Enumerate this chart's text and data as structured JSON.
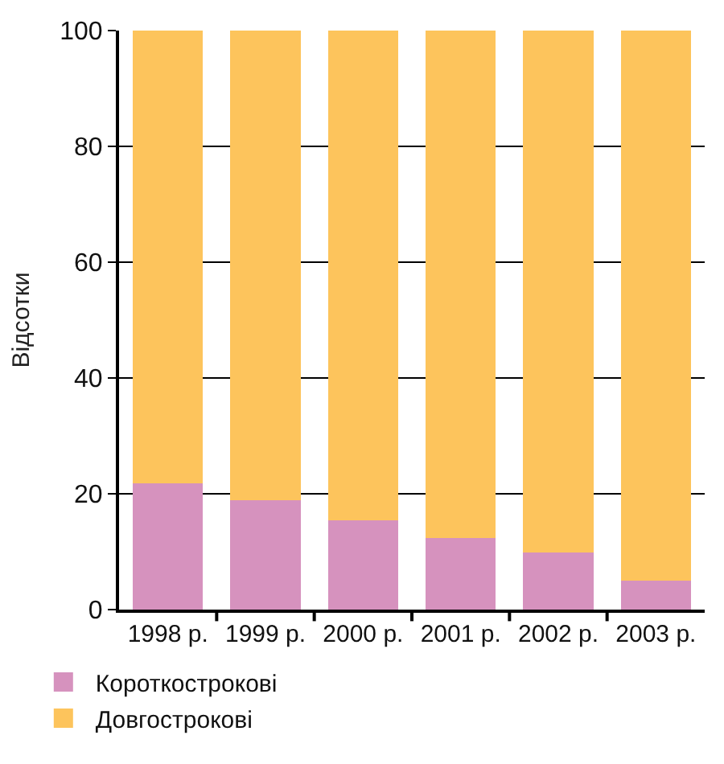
{
  "chart_data": {
    "type": "bar",
    "stacked": true,
    "ylabel": "Відсотки",
    "categories": [
      "1998 р.",
      "1999 р.",
      "2000 р.",
      "2001 р.",
      "2002 р.",
      "2003 р."
    ],
    "series": [
      {
        "name": "Короткострокові",
        "color": "#d692be",
        "values": [
          21.8,
          18.9,
          15.4,
          12.4,
          9.8,
          5.0
        ]
      },
      {
        "name": "Довгострокові",
        "color": "#fdc45c",
        "values": [
          78.2,
          81.1,
          84.6,
          87.6,
          90.2,
          95.0
        ]
      }
    ],
    "ylim": [
      0,
      100
    ],
    "yticks": [
      0,
      20,
      40,
      60,
      80,
      100
    ],
    "grid": "y",
    "legend": "bottom left"
  }
}
